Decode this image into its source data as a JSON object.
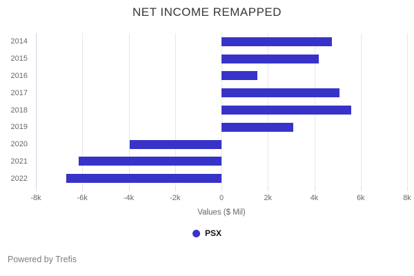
{
  "chart_data": {
    "type": "bar",
    "orientation": "horizontal",
    "title": "NET INCOME REMAPPED",
    "categories": [
      "2014",
      "2015",
      "2016",
      "2017",
      "2018",
      "2019",
      "2020",
      "2021",
      "2022"
    ],
    "series": [
      {
        "name": "PSX",
        "color": "#3833C8",
        "values": [
          4750,
          4200,
          1550,
          5100,
          5600,
          3100,
          -3950,
          -6150,
          -6700
        ]
      }
    ],
    "xlabel": "Values ($ Mil)",
    "xlim": [
      -8000,
      8000
    ],
    "xtick_values": [
      -8000,
      -6000,
      -4000,
      -2000,
      0,
      2000,
      4000,
      6000,
      8000
    ],
    "xtick_labels": [
      "-8k",
      "-6k",
      "-4k",
      "-2k",
      "0",
      "2k",
      "4k",
      "6k",
      "8k"
    ],
    "grid": true,
    "legend_position": "bottom"
  },
  "legend": {
    "psx_label": "PSX"
  },
  "footer": {
    "text": "Powered by Trefis"
  },
  "colors": {
    "bar": "#3833C8",
    "gridline": "#e6e6e6",
    "axis_edge_line": "#c9d5e6",
    "tick": "#d8dde6",
    "title_text": "#37373c",
    "axis_text": "#666666",
    "footer_text": "#7d7d7d"
  }
}
